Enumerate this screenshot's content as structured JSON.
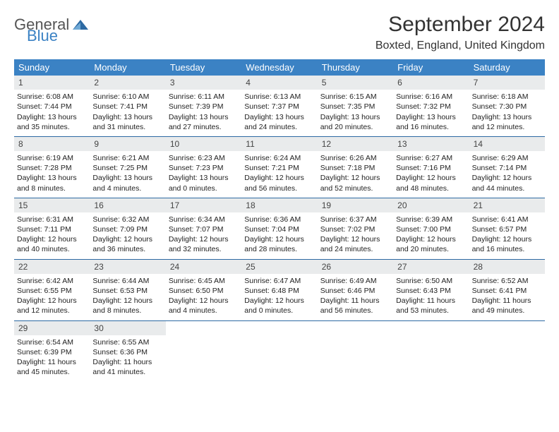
{
  "logo": {
    "text_a": "General",
    "text_b": "Blue"
  },
  "title": "September 2024",
  "location": "Boxted, England, United Kingdom",
  "colors": {
    "header_bg": "#3b82c4",
    "daynum_bg": "#e9ebec",
    "week_border": "#2d6aa3",
    "text": "#333333"
  },
  "weekdays": [
    "Sunday",
    "Monday",
    "Tuesday",
    "Wednesday",
    "Thursday",
    "Friday",
    "Saturday"
  ],
  "rows": [
    [
      {
        "n": "1",
        "sr": "6:08 AM",
        "ss": "7:44 PM",
        "dl": "13 hours and 35 minutes."
      },
      {
        "n": "2",
        "sr": "6:10 AM",
        "ss": "7:41 PM",
        "dl": "13 hours and 31 minutes."
      },
      {
        "n": "3",
        "sr": "6:11 AM",
        "ss": "7:39 PM",
        "dl": "13 hours and 27 minutes."
      },
      {
        "n": "4",
        "sr": "6:13 AM",
        "ss": "7:37 PM",
        "dl": "13 hours and 24 minutes."
      },
      {
        "n": "5",
        "sr": "6:15 AM",
        "ss": "7:35 PM",
        "dl": "13 hours and 20 minutes."
      },
      {
        "n": "6",
        "sr": "6:16 AM",
        "ss": "7:32 PM",
        "dl": "13 hours and 16 minutes."
      },
      {
        "n": "7",
        "sr": "6:18 AM",
        "ss": "7:30 PM",
        "dl": "13 hours and 12 minutes."
      }
    ],
    [
      {
        "n": "8",
        "sr": "6:19 AM",
        "ss": "7:28 PM",
        "dl": "13 hours and 8 minutes."
      },
      {
        "n": "9",
        "sr": "6:21 AM",
        "ss": "7:25 PM",
        "dl": "13 hours and 4 minutes."
      },
      {
        "n": "10",
        "sr": "6:23 AM",
        "ss": "7:23 PM",
        "dl": "13 hours and 0 minutes."
      },
      {
        "n": "11",
        "sr": "6:24 AM",
        "ss": "7:21 PM",
        "dl": "12 hours and 56 minutes."
      },
      {
        "n": "12",
        "sr": "6:26 AM",
        "ss": "7:18 PM",
        "dl": "12 hours and 52 minutes."
      },
      {
        "n": "13",
        "sr": "6:27 AM",
        "ss": "7:16 PM",
        "dl": "12 hours and 48 minutes."
      },
      {
        "n": "14",
        "sr": "6:29 AM",
        "ss": "7:14 PM",
        "dl": "12 hours and 44 minutes."
      }
    ],
    [
      {
        "n": "15",
        "sr": "6:31 AM",
        "ss": "7:11 PM",
        "dl": "12 hours and 40 minutes."
      },
      {
        "n": "16",
        "sr": "6:32 AM",
        "ss": "7:09 PM",
        "dl": "12 hours and 36 minutes."
      },
      {
        "n": "17",
        "sr": "6:34 AM",
        "ss": "7:07 PM",
        "dl": "12 hours and 32 minutes."
      },
      {
        "n": "18",
        "sr": "6:36 AM",
        "ss": "7:04 PM",
        "dl": "12 hours and 28 minutes."
      },
      {
        "n": "19",
        "sr": "6:37 AM",
        "ss": "7:02 PM",
        "dl": "12 hours and 24 minutes."
      },
      {
        "n": "20",
        "sr": "6:39 AM",
        "ss": "7:00 PM",
        "dl": "12 hours and 20 minutes."
      },
      {
        "n": "21",
        "sr": "6:41 AM",
        "ss": "6:57 PM",
        "dl": "12 hours and 16 minutes."
      }
    ],
    [
      {
        "n": "22",
        "sr": "6:42 AM",
        "ss": "6:55 PM",
        "dl": "12 hours and 12 minutes."
      },
      {
        "n": "23",
        "sr": "6:44 AM",
        "ss": "6:53 PM",
        "dl": "12 hours and 8 minutes."
      },
      {
        "n": "24",
        "sr": "6:45 AM",
        "ss": "6:50 PM",
        "dl": "12 hours and 4 minutes."
      },
      {
        "n": "25",
        "sr": "6:47 AM",
        "ss": "6:48 PM",
        "dl": "12 hours and 0 minutes."
      },
      {
        "n": "26",
        "sr": "6:49 AM",
        "ss": "6:46 PM",
        "dl": "11 hours and 56 minutes."
      },
      {
        "n": "27",
        "sr": "6:50 AM",
        "ss": "6:43 PM",
        "dl": "11 hours and 53 minutes."
      },
      {
        "n": "28",
        "sr": "6:52 AM",
        "ss": "6:41 PM",
        "dl": "11 hours and 49 minutes."
      }
    ],
    [
      {
        "n": "29",
        "sr": "6:54 AM",
        "ss": "6:39 PM",
        "dl": "11 hours and 45 minutes."
      },
      {
        "n": "30",
        "sr": "6:55 AM",
        "ss": "6:36 PM",
        "dl": "11 hours and 41 minutes."
      },
      {
        "empty": true
      },
      {
        "empty": true
      },
      {
        "empty": true
      },
      {
        "empty": true
      },
      {
        "empty": true
      }
    ]
  ],
  "labels": {
    "sunrise": "Sunrise:",
    "sunset": "Sunset:",
    "daylight": "Daylight:"
  }
}
